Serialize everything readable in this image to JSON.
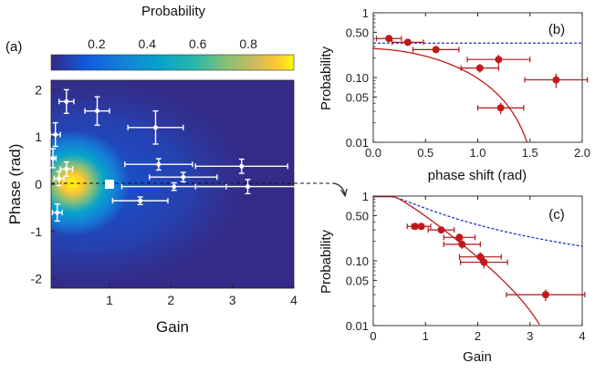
{
  "chart_data": [
    {
      "panel": "(a)",
      "type": "heatmap",
      "colorbar": {
        "label": "Probability",
        "ticks": [
          0.2,
          0.4,
          0.6,
          0.8
        ],
        "range": [
          0.02,
          0.98
        ],
        "colormap": "parula"
      },
      "xlabel": "Gain",
      "ylabel": "Phase (rad)",
      "xlim": [
        0.05,
        4
      ],
      "ylim": [
        -2.2,
        2.2
      ],
      "xticks": [
        1,
        2,
        3,
        4
      ],
      "yticks": [
        -2,
        -1,
        0,
        1,
        2
      ],
      "reference_marker": {
        "x": 1,
        "y": 0
      },
      "points": [
        {
          "x": 0.3,
          "y": 1.75,
          "xerr": 0.12,
          "yerr": 0.25
        },
        {
          "x": 0.8,
          "y": 1.55,
          "xerr": 0.2,
          "yerr": 0.3
        },
        {
          "x": 0.12,
          "y": 1.05,
          "xerr": 0.08,
          "yerr": 0.25
        },
        {
          "x": 1.75,
          "y": 1.2,
          "xerr": 0.45,
          "yerr": 0.35
        },
        {
          "x": 0.08,
          "y": 0.55,
          "xerr": 0.05,
          "yerr": 0.2
        },
        {
          "x": 0.3,
          "y": 0.32,
          "xerr": 0.1,
          "yerr": 0.15
        },
        {
          "x": 0.18,
          "y": 0.12,
          "xerr": 0.08,
          "yerr": 0.15
        },
        {
          "x": 1.8,
          "y": 0.42,
          "xerr": 0.55,
          "yerr": 0.12
        },
        {
          "x": 2.2,
          "y": 0.15,
          "xerr": 0.55,
          "yerr": 0.1
        },
        {
          "x": 3.15,
          "y": 0.38,
          "xerr": 0.75,
          "yerr": 0.15
        },
        {
          "x": 2.05,
          "y": -0.05,
          "xerr": 0.85,
          "yerr": 0.08
        },
        {
          "x": 3.25,
          "y": -0.05,
          "xerr": 0.85,
          "yerr": 0.15
        },
        {
          "x": 1.5,
          "y": -0.35,
          "xerr": 0.45,
          "yerr": 0.08
        },
        {
          "x": 0.15,
          "y": -0.6,
          "xerr": 0.08,
          "yerr": 0.18
        }
      ]
    },
    {
      "panel": "(b)",
      "type": "scatter",
      "xlabel": "phase shift (rad)",
      "ylabel": "Probability",
      "xlim": [
        0,
        2
      ],
      "ylim": [
        0.01,
        1
      ],
      "yscale": "log",
      "xticks": [
        "0.0",
        "0.5",
        "1.0",
        "1.5",
        "2.0"
      ],
      "yticks": [
        "0.01",
        "0.05",
        "0.10",
        "0.50",
        "1"
      ],
      "ytick_values": [
        0.01,
        0.05,
        0.1,
        0.5,
        1
      ],
      "points": [
        {
          "x": 0.15,
          "y": 0.4,
          "xerr": 0.12,
          "yerr_rel": 0.1
        },
        {
          "x": 0.33,
          "y": 0.35,
          "xerr": 0.15,
          "yerr_rel": 0.1
        },
        {
          "x": 0.6,
          "y": 0.27,
          "xerr": 0.22,
          "yerr_rel": 0.12
        },
        {
          "x": 1.02,
          "y": 0.14,
          "xerr": 0.18,
          "yerr_rel": 0.15
        },
        {
          "x": 1.2,
          "y": 0.19,
          "xerr": 0.3,
          "yerr_rel": 0.18
        },
        {
          "x": 1.22,
          "y": 0.034,
          "xerr": 0.22,
          "yerr_rel": 0.2
        },
        {
          "x": 1.75,
          "y": 0.092,
          "xerr": 0.3,
          "yerr_rel": 0.25
        }
      ],
      "dashed_curve": {
        "color": "#2233cc",
        "y_const": 0.34
      },
      "solid_curve": {
        "color": "#c21a1a"
      }
    },
    {
      "panel": "(c)",
      "type": "scatter",
      "xlabel": "Gain",
      "ylabel": "Probability",
      "xlim": [
        0,
        4
      ],
      "ylim": [
        0.01,
        1
      ],
      "yscale": "log",
      "xticks": [
        "0",
        "1",
        "2",
        "3",
        "4"
      ],
      "yticks": [
        "0.01",
        "0.05",
        "0.10",
        "0.50",
        "1"
      ],
      "ytick_values": [
        0.01,
        0.05,
        0.1,
        0.5,
        1
      ],
      "points": [
        {
          "x": 0.8,
          "y": 0.34,
          "xerr": 0.15,
          "yerr_rel": 0.1
        },
        {
          "x": 0.92,
          "y": 0.34,
          "xerr": 0.18,
          "yerr_rel": 0.1
        },
        {
          "x": 1.3,
          "y": 0.3,
          "xerr": 0.25,
          "yerr_rel": 0.12
        },
        {
          "x": 1.65,
          "y": 0.23,
          "xerr": 0.3,
          "yerr_rel": 0.15
        },
        {
          "x": 1.7,
          "y": 0.18,
          "xerr": 0.35,
          "yerr_rel": 0.15
        },
        {
          "x": 2.05,
          "y": 0.115,
          "xerr": 0.4,
          "yerr_rel": 0.18
        },
        {
          "x": 2.12,
          "y": 0.095,
          "xerr": 0.45,
          "yerr_rel": 0.2
        },
        {
          "x": 3.3,
          "y": 0.03,
          "xerr": 0.75,
          "yerr_rel": 0.2
        }
      ],
      "dashed_curve": {
        "color": "#2233cc"
      },
      "solid_curve": {
        "color": "#c21a1a"
      }
    }
  ]
}
